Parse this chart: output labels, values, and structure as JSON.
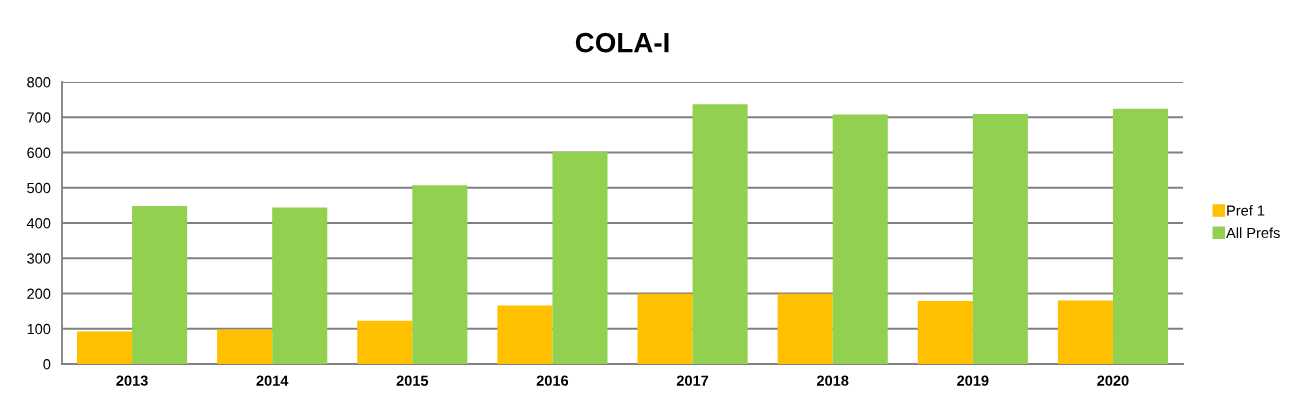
{
  "chart_data": {
    "type": "bar",
    "title": "COLA-I",
    "categories": [
      "2013",
      "2014",
      "2015",
      "2016",
      "2017",
      "2018",
      "2019",
      "2020"
    ],
    "series": [
      {
        "name": "Pref 1",
        "color": "#ffc000",
        "values": [
          92,
          98,
          123,
          166,
          199,
          199,
          179,
          180
        ]
      },
      {
        "name": "All Prefs",
        "color": "#92d050",
        "values": [
          448,
          444,
          507,
          602,
          737,
          708,
          709,
          724
        ]
      }
    ],
    "ylim": [
      0,
      800
    ],
    "yticks": [
      0,
      100,
      200,
      300,
      400,
      500,
      600,
      700,
      800
    ],
    "grid": "y",
    "legend": "right"
  }
}
